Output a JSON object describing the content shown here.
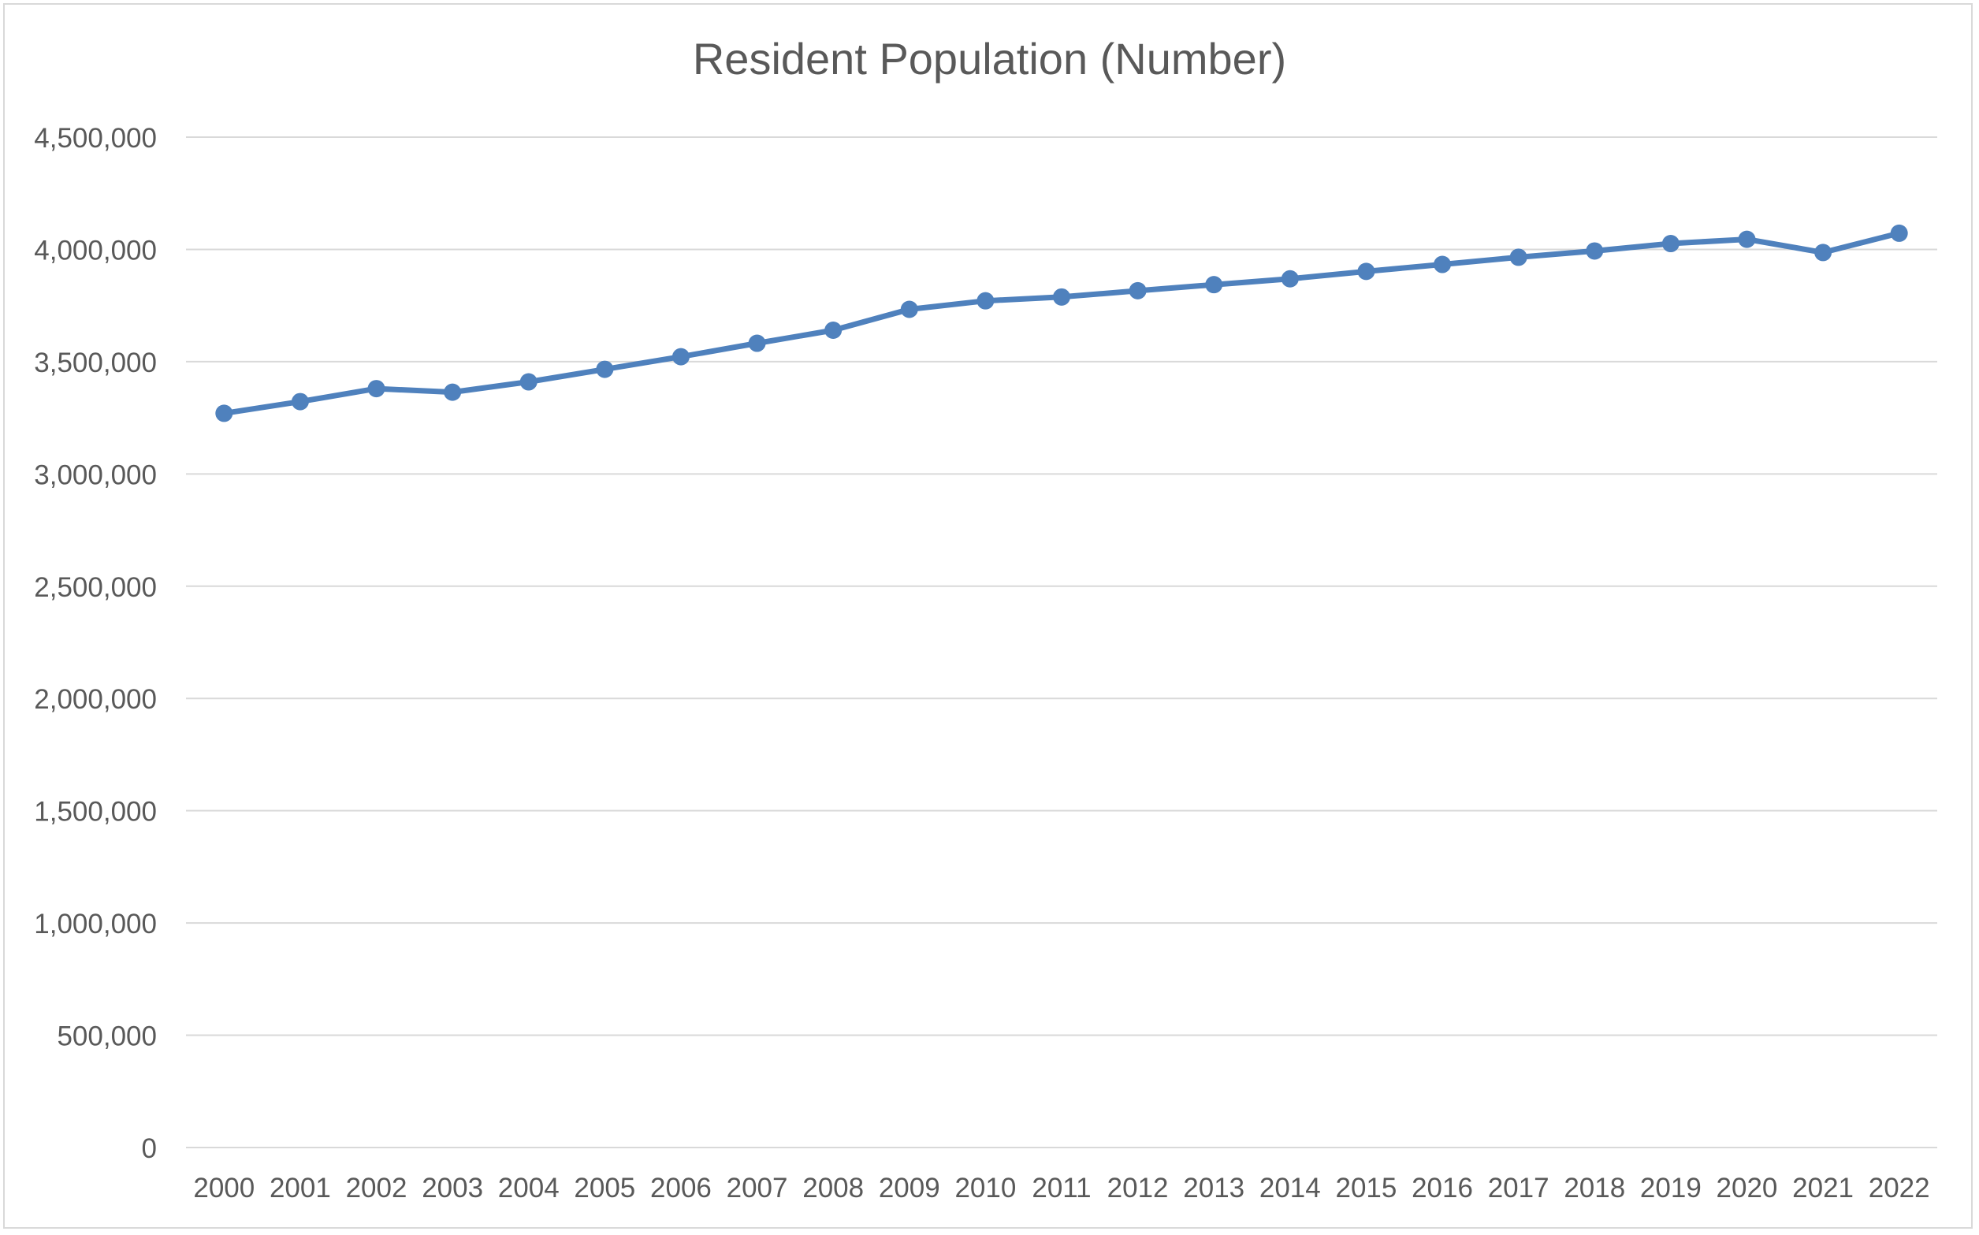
{
  "chart_data": {
    "type": "line",
    "title": "Resident Population (Number)",
    "xlabel": "",
    "ylabel": "",
    "categories": [
      "2000",
      "2001",
      "2002",
      "2003",
      "2004",
      "2005",
      "2006",
      "2007",
      "2008",
      "2009",
      "2010",
      "2011",
      "2012",
      "2013",
      "2014",
      "2015",
      "2016",
      "2017",
      "2018",
      "2019",
      "2020",
      "2021",
      "2022"
    ],
    "series": [
      {
        "values": [
          3270000,
          3322000,
          3380000,
          3364000,
          3410000,
          3466000,
          3522000,
          3582000,
          3640000,
          3733000,
          3771000,
          3788000,
          3816000,
          3843000,
          3869000,
          3902000,
          3933000,
          3965000,
          3993000,
          4026000,
          4045000,
          3986000,
          4072000
        ]
      }
    ],
    "ylim": [
      0,
      4500000
    ],
    "yticks": [
      0,
      500000,
      1000000,
      1500000,
      2000000,
      2500000,
      3000000,
      3500000,
      4000000,
      4500000
    ],
    "ytick_labels": [
      "0",
      "500,000",
      "1,000,000",
      "1,500,000",
      "2,000,000",
      "2,500,000",
      "3,000,000",
      "3,500,000",
      "4,000,000",
      "4,500,000"
    ],
    "grid": true,
    "legend": "none",
    "colors": {
      "series": "#4f81bd",
      "grid": "#d9d9d9",
      "text": "#595959"
    }
  }
}
